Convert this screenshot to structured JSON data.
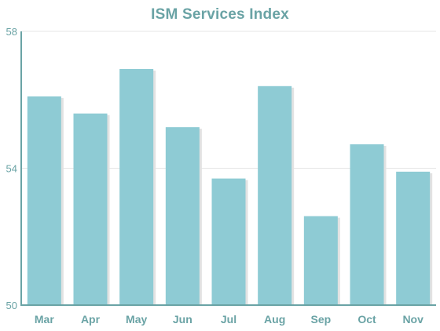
{
  "chart_data": {
    "type": "bar",
    "title": "ISM Services Index",
    "xlabel": "",
    "ylabel": "",
    "categories": [
      "Mar",
      "Apr",
      "May",
      "Jun",
      "Jul",
      "Aug",
      "Sep",
      "Oct",
      "Nov"
    ],
    "values": [
      56.1,
      55.6,
      56.9,
      55.2,
      53.7,
      56.4,
      52.6,
      54.7,
      53.9
    ],
    "ylim": [
      50,
      58
    ],
    "yticks": [
      50,
      54,
      58
    ],
    "grid": true,
    "legend": "none"
  },
  "colors": {
    "bar": "#8ecbd4",
    "bar_shadow": "#e2e2e2",
    "axis": "#6aa3a5",
    "title": "#6aa3a5",
    "tick_label": "#6aa3a5",
    "grid": "#e6e6e6"
  }
}
